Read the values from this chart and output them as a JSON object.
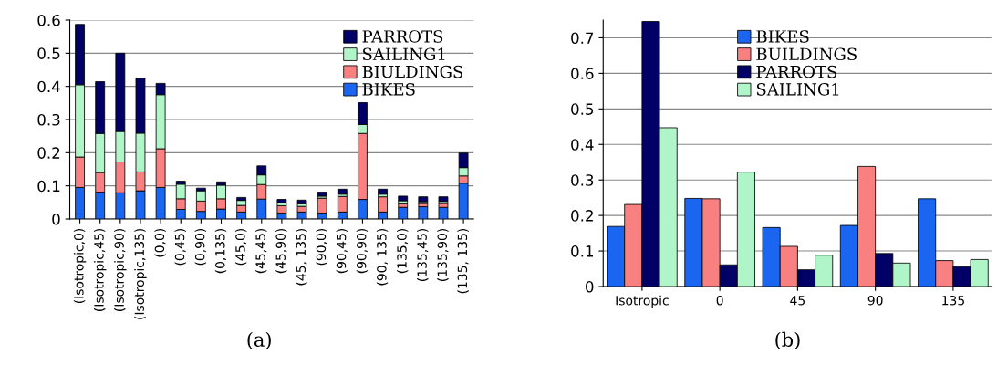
{
  "chart_data": [
    {
      "type": "bar",
      "stacked": true,
      "categories": [
        "(Isotropic,0)",
        "(Isotropic,45)",
        "(Isotropic,90)",
        "(Isotropic,135)",
        "(0,0)",
        "(0,45)",
        "(0,90)",
        "(0,135)",
        "(45,0)",
        "(45,45)",
        "(45,90)",
        "(45, 135)",
        "(90,0)",
        "(90,45)",
        "(90,90)",
        "(90, 135)",
        "(135,0)",
        "(135,45)",
        "(135,90)",
        "(135, 135)"
      ],
      "series": [
        {
          "name": "BIKES",
          "color": "#1a66f0",
          "values": [
            0.095,
            0.081,
            0.079,
            0.085,
            0.095,
            0.029,
            0.023,
            0.03,
            0.021,
            0.06,
            0.018,
            0.021,
            0.018,
            0.021,
            0.059,
            0.021,
            0.035,
            0.037,
            0.035,
            0.108
          ]
        },
        {
          "name": "BIULDINGS",
          "color": "#f88080",
          "values": [
            0.092,
            0.059,
            0.093,
            0.057,
            0.117,
            0.032,
            0.031,
            0.031,
            0.02,
            0.044,
            0.022,
            0.017,
            0.045,
            0.047,
            0.199,
            0.046,
            0.011,
            0.01,
            0.012,
            0.022
          ]
        },
        {
          "name": "SAILING1",
          "color": "#b0f5c8",
          "values": [
            0.218,
            0.118,
            0.092,
            0.117,
            0.163,
            0.044,
            0.031,
            0.041,
            0.015,
            0.029,
            0.009,
            0.008,
            0.006,
            0.007,
            0.027,
            0.008,
            0.009,
            0.005,
            0.006,
            0.025
          ]
        },
        {
          "name": "PARROTS",
          "color": "#000066",
          "values": [
            0.182,
            0.156,
            0.236,
            0.166,
            0.034,
            0.009,
            0.008,
            0.01,
            0.009,
            0.027,
            0.01,
            0.011,
            0.012,
            0.015,
            0.066,
            0.015,
            0.014,
            0.015,
            0.014,
            0.044
          ]
        }
      ],
      "ylim": [
        0,
        0.6
      ],
      "yticks": [
        0,
        0.1,
        0.2,
        0.3,
        0.4,
        0.5,
        0.6
      ],
      "grid": "y",
      "legend": "top right",
      "annotations": [
        "(a)"
      ]
    },
    {
      "type": "bar",
      "categories": [
        "Isotropic",
        "0",
        "45",
        "90",
        "135"
      ],
      "series": [
        {
          "name": "BIKES",
          "color": "#1a66f0",
          "values": [
            0.169,
            0.248,
            0.166,
            0.172,
            0.247
          ]
        },
        {
          "name": "BUILDINGS",
          "color": "#f88080",
          "values": [
            0.231,
            0.247,
            0.113,
            0.338,
            0.073
          ]
        },
        {
          "name": "PARROTS",
          "color": "#000066",
          "values": [
            0.746,
            0.061,
            0.047,
            0.093,
            0.056
          ]
        },
        {
          "name": "SAILING1",
          "color": "#b0f5c8",
          "values": [
            0.447,
            0.322,
            0.088,
            0.066,
            0.076
          ]
        }
      ],
      "ylim": [
        0,
        0.75
      ],
      "yticks": [
        0,
        0.1,
        0.2,
        0.3,
        0.4,
        0.5,
        0.6,
        0.7
      ],
      "grid": "y",
      "legend": "top",
      "annotations": [
        "(b)"
      ]
    }
  ]
}
